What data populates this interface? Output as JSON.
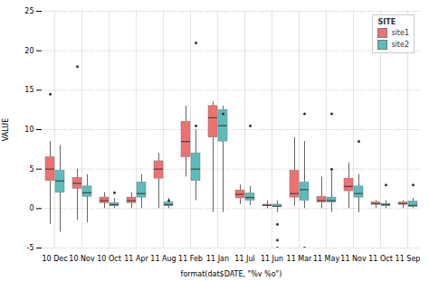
{
  "chart_data": {
    "type": "boxplot",
    "xlabel": "format(dat$DATE, \"%v %o\")",
    "ylabel": "VALUE",
    "legend_title": "SITE",
    "legend": "upper right",
    "grid": true,
    "ylim": [
      -5,
      25
    ],
    "yticks": [
      -5,
      0,
      5,
      10,
      15,
      20,
      25
    ],
    "categories": [
      "10 Dec",
      "10 Nov",
      "10 Oct",
      "11 Apr",
      "11 Aug",
      "11 Feb",
      "11 Jan",
      "11 Jul",
      "11 Jun",
      "11 Mar",
      "11 May",
      "11 Nov",
      "11 Oct",
      "11 Sep"
    ],
    "series": [
      {
        "name": "site1",
        "color": "#F07070",
        "q1": [
          3.5,
          2.5,
          0.7,
          0.7,
          3.8,
          6.5,
          9.0,
          1.3,
          0.3,
          1.4,
          0.8,
          2.2,
          0.5,
          0.5
        ],
        "median": [
          5.0,
          3.2,
          1.0,
          1.0,
          5.0,
          8.5,
          11.5,
          1.8,
          0.4,
          1.9,
          1.0,
          2.8,
          0.6,
          0.6
        ],
        "q3": [
          6.5,
          3.9,
          1.4,
          1.4,
          6.0,
          11.0,
          13.0,
          2.3,
          0.5,
          4.8,
          1.5,
          3.8,
          0.8,
          0.8
        ],
        "whislo": [
          -2.0,
          -1.5,
          0.0,
          0.0,
          0.0,
          4.0,
          -0.5,
          0.5,
          0.0,
          0.3,
          0.0,
          0.0,
          0.0,
          0.0
        ],
        "whishi": [
          8.5,
          5.0,
          2.0,
          2.0,
          7.0,
          13.0,
          13.5,
          3.0,
          1.0,
          9.0,
          4.0,
          5.8,
          1.0,
          1.0
        ],
        "fliers": [
          [
            14.5
          ],
          [
            18.0
          ],
          [],
          [],
          [],
          [],
          [],
          [],
          [],
          [],
          [],
          [],
          [],
          []
        ]
      },
      {
        "name": "site2",
        "color": "#5BBCBC",
        "q1": [
          2.0,
          1.5,
          0.3,
          1.4,
          0.3,
          3.5,
          8.5,
          1.0,
          0.2,
          1.0,
          0.8,
          1.4,
          0.3,
          0.2
        ],
        "median": [
          3.5,
          2.0,
          0.5,
          1.9,
          0.5,
          5.0,
          10.5,
          1.4,
          0.3,
          2.4,
          1.0,
          1.9,
          0.5,
          0.4
        ],
        "q3": [
          4.8,
          2.8,
          0.7,
          3.3,
          0.8,
          7.0,
          12.5,
          1.9,
          0.5,
          3.3,
          1.4,
          2.8,
          0.6,
          0.9
        ],
        "whislo": [
          -3.0,
          -1.8,
          0.0,
          0.0,
          0.0,
          1.0,
          -0.5,
          0.4,
          -0.5,
          0.0,
          -0.5,
          -0.5,
          0.0,
          0.0
        ],
        "whishi": [
          8.0,
          4.3,
          1.3,
          4.3,
          1.3,
          10.0,
          13.0,
          2.8,
          1.0,
          8.5,
          4.8,
          4.3,
          1.0,
          1.3
        ],
        "fliers": [
          [],
          [],
          [
            2.0
          ],
          [],
          [
            1.0
          ],
          [
            10.5,
            21.0
          ],
          [
            12.0
          ],
          [
            10.5
          ],
          [
            -2.0,
            -4.0,
            -5.0
          ],
          [
            12.0,
            -5.0
          ],
          [
            5.0,
            12.0
          ],
          [
            8.5
          ],
          [
            3.0
          ],
          [
            3.0
          ]
        ]
      }
    ]
  }
}
